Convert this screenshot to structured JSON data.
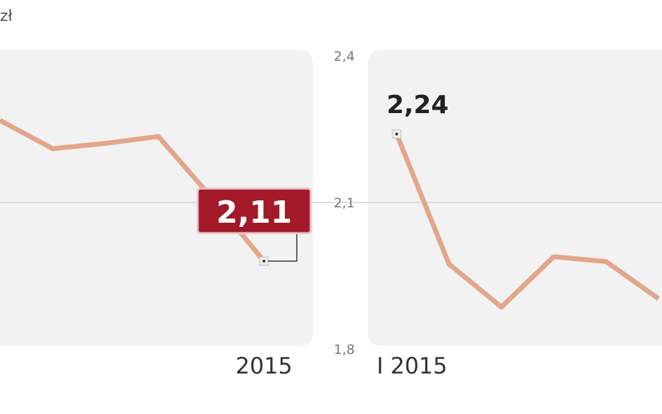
{
  "unit": "zł",
  "chart_data": [
    {
      "type": "line",
      "color": "#e3a68a",
      "categories": [
        null,
        null,
        null,
        null,
        null,
        "2015"
      ],
      "values": [
        2.398,
        2.34,
        2.351,
        2.365,
        2.241,
        2.11
      ],
      "value_labels": [
        null,
        null,
        null,
        null,
        null,
        "2,11"
      ],
      "ylim": [
        1.93,
        2.53
      ]
    },
    {
      "type": "line",
      "color": "#e3a68a",
      "categories": [
        "I 2015",
        null,
        null,
        null,
        null,
        null
      ],
      "values": [
        2.24,
        1.974,
        1.886,
        1.989,
        1.979,
        1.903
      ],
      "value_labels": [
        "2,24",
        null,
        null,
        null,
        null,
        null
      ],
      "ylim": [
        1.8,
        2.4
      ],
      "yticks": [
        {
          "value": 1.8,
          "label": "1,8"
        },
        {
          "value": 2.1,
          "label": "2,1"
        },
        {
          "value": 2.4,
          "label": "2,4"
        }
      ],
      "grid": true
    }
  ]
}
